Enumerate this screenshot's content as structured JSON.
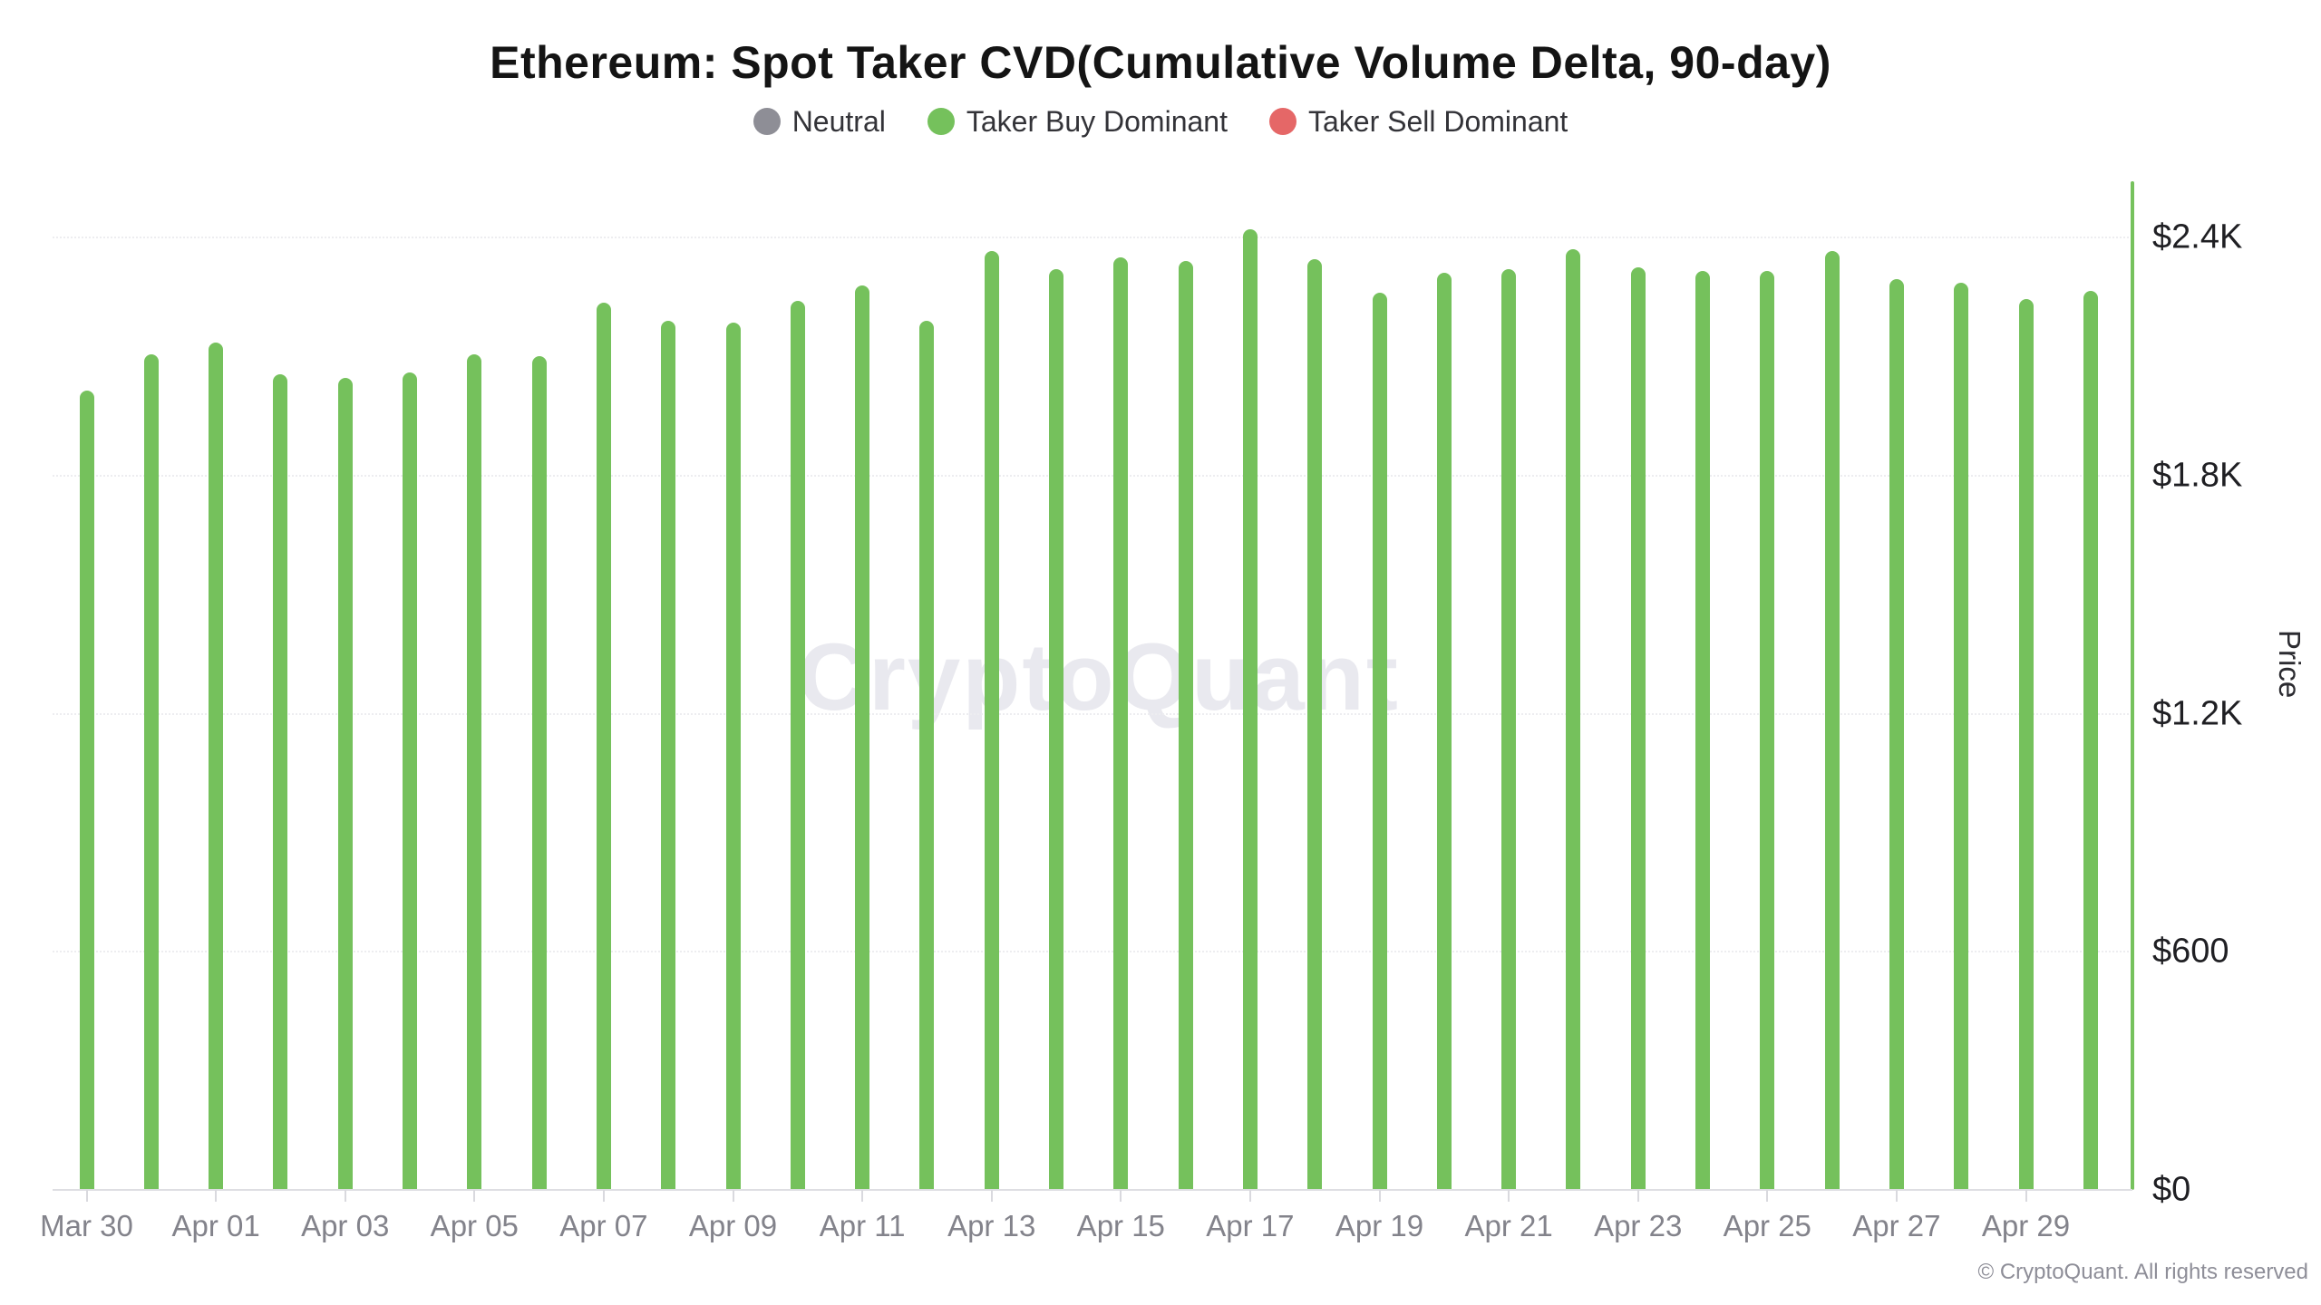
{
  "title": "Ethereum: Spot Taker CVD(Cumulative Volume Delta, 90-day)",
  "legend": {
    "items": [
      {
        "label": "Neutral",
        "color": "#8e8e96"
      },
      {
        "label": "Taker Buy Dominant",
        "color": "#75c15c"
      },
      {
        "label": "Taker Sell Dominant",
        "color": "#e56767"
      }
    ]
  },
  "y_axis": {
    "title": "Price",
    "tick_labels": [
      "$2.4K",
      "$1.8K",
      "$1.2K",
      "$600",
      "$0"
    ],
    "axis_color": "#76c25d"
  },
  "x_axis": {
    "tick_labels": [
      "Mar 30",
      "Apr 01",
      "Apr 03",
      "Apr 05",
      "Apr 07",
      "Apr 09",
      "Apr 11",
      "Apr 13",
      "Apr 15",
      "Apr 17",
      "Apr 19",
      "Apr 21",
      "Apr 23",
      "Apr 25",
      "Apr 27",
      "Apr 29"
    ]
  },
  "watermark": "CryptoQuant",
  "copyright": "© CryptoQuant. All rights reserved",
  "chart_data": {
    "type": "bar",
    "title": "Ethereum: Spot Taker CVD(Cumulative Volume Delta, 90-day)",
    "xlabel": "",
    "ylabel": "Price",
    "ylim": [
      0,
      2540
    ],
    "y_ticks_usd": [
      0,
      600,
      1200,
      1800,
      2400
    ],
    "grid": "horizontal-dotted",
    "legend_position": "top-center",
    "bar_status_colors": {
      "neutral": "#8e8e96",
      "taker_buy_dominant": "#75c15c",
      "taker_sell_dominant": "#e56767"
    },
    "points": [
      {
        "date": "Mar 30",
        "value": 2015,
        "status": "taker_buy_dominant"
      },
      {
        "date": "Mar 31",
        "value": 2105,
        "status": "taker_buy_dominant"
      },
      {
        "date": "Apr 01",
        "value": 2135,
        "status": "taker_buy_dominant"
      },
      {
        "date": "Apr 02",
        "value": 2055,
        "status": "taker_buy_dominant"
      },
      {
        "date": "Apr 03",
        "value": 2045,
        "status": "taker_buy_dominant"
      },
      {
        "date": "Apr 04",
        "value": 2060,
        "status": "taker_buy_dominant"
      },
      {
        "date": "Apr 05",
        "value": 2105,
        "status": "taker_buy_dominant"
      },
      {
        "date": "Apr 06",
        "value": 2100,
        "status": "taker_buy_dominant"
      },
      {
        "date": "Apr 07",
        "value": 2235,
        "status": "taker_buy_dominant"
      },
      {
        "date": "Apr 08",
        "value": 2190,
        "status": "taker_buy_dominant"
      },
      {
        "date": "Apr 09",
        "value": 2185,
        "status": "taker_buy_dominant"
      },
      {
        "date": "Apr 10",
        "value": 2240,
        "status": "taker_buy_dominant"
      },
      {
        "date": "Apr 11",
        "value": 2280,
        "status": "taker_buy_dominant"
      },
      {
        "date": "Apr 12",
        "value": 2190,
        "status": "taker_buy_dominant"
      },
      {
        "date": "Apr 13",
        "value": 2365,
        "status": "taker_buy_dominant"
      },
      {
        "date": "Apr 14",
        "value": 2320,
        "status": "taker_buy_dominant"
      },
      {
        "date": "Apr 15",
        "value": 2350,
        "status": "taker_buy_dominant"
      },
      {
        "date": "Apr 16",
        "value": 2340,
        "status": "taker_buy_dominant"
      },
      {
        "date": "Apr 17",
        "value": 2420,
        "status": "taker_buy_dominant"
      },
      {
        "date": "Apr 18",
        "value": 2345,
        "status": "taker_buy_dominant"
      },
      {
        "date": "Apr 19",
        "value": 2260,
        "status": "taker_buy_dominant"
      },
      {
        "date": "Apr 20",
        "value": 2310,
        "status": "taker_buy_dominant"
      },
      {
        "date": "Apr 21",
        "value": 2320,
        "status": "taker_buy_dominant"
      },
      {
        "date": "Apr 22",
        "value": 2370,
        "status": "taker_buy_dominant"
      },
      {
        "date": "Apr 23",
        "value": 2325,
        "status": "taker_buy_dominant"
      },
      {
        "date": "Apr 24",
        "value": 2315,
        "status": "taker_buy_dominant"
      },
      {
        "date": "Apr 25",
        "value": 2315,
        "status": "taker_buy_dominant"
      },
      {
        "date": "Apr 26",
        "value": 2365,
        "status": "taker_buy_dominant"
      },
      {
        "date": "Apr 27",
        "value": 2295,
        "status": "taker_buy_dominant"
      },
      {
        "date": "Apr 28",
        "value": 2285,
        "status": "taker_buy_dominant"
      },
      {
        "date": "Apr 29",
        "value": 2245,
        "status": "taker_buy_dominant"
      },
      {
        "date": "Apr 30",
        "value": 2265,
        "status": "taker_buy_dominant"
      }
    ]
  }
}
